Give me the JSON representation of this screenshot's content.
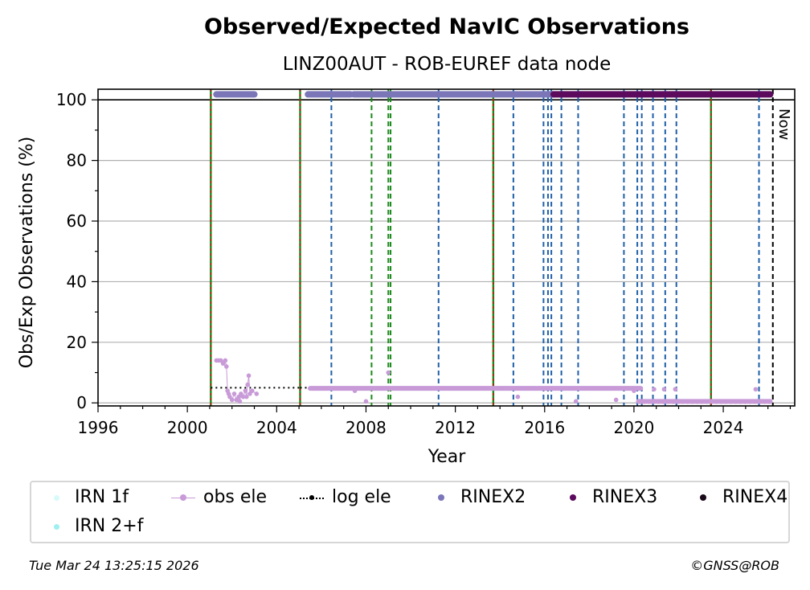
{
  "chart_data": {
    "type": "scatter",
    "title": "Observed/Expected NavIC Observations",
    "subtitle": "LINZ00AUT - ROB-EUREF data node",
    "xlabel": "Year",
    "ylabel": "Obs/Exp Observations (%)",
    "xlim": [
      1996,
      2027.2
    ],
    "ylim": [
      -1,
      103.5
    ],
    "xticks": [
      1996,
      2000,
      2004,
      2008,
      2012,
      2016,
      2020,
      2024
    ],
    "yticks": [
      0,
      20,
      40,
      60,
      80,
      100
    ],
    "grid": "horizontal",
    "now_label": "Now",
    "now_year": 2026.22,
    "reference_line_y": 100,
    "vlines_green_red": [
      2001.05,
      2005.05,
      2013.7,
      2023.45
    ],
    "vlines_green": [
      2008.25,
      2009.0,
      2009.1
    ],
    "vlines_blue": [
      2006.45,
      2011.25,
      2014.6,
      2015.95,
      2016.15,
      2016.3,
      2016.75,
      2017.5,
      2019.55,
      2020.15,
      2020.35,
      2020.85,
      2021.4,
      2021.9,
      2025.6
    ],
    "series": [
      {
        "name": "obs ele",
        "color": "#c89ad8",
        "points": [
          [
            2001.3,
            14
          ],
          [
            2001.4,
            14
          ],
          [
            2001.5,
            14
          ],
          [
            2001.6,
            13
          ],
          [
            2001.7,
            14
          ],
          [
            2001.75,
            12
          ],
          [
            2001.8,
            4
          ],
          [
            2001.85,
            3
          ],
          [
            2001.9,
            2
          ],
          [
            2002.0,
            1
          ],
          [
            2002.1,
            3
          ],
          [
            2002.2,
            1
          ],
          [
            2002.3,
            2
          ],
          [
            2002.35,
            0.5
          ],
          [
            2002.4,
            3
          ],
          [
            2002.5,
            2
          ],
          [
            2002.6,
            4
          ],
          [
            2002.65,
            2
          ],
          [
            2002.7,
            6
          ],
          [
            2002.75,
            9
          ],
          [
            2002.8,
            3
          ],
          [
            2002.9,
            4
          ],
          [
            2003.1,
            3
          ],
          [
            2007.5,
            4
          ],
          [
            2008.0,
            0.5
          ],
          [
            2009.0,
            10
          ],
          [
            2014.8,
            2
          ],
          [
            2017.4,
            0.5
          ],
          [
            2019.2,
            1
          ],
          [
            2020.0,
            4
          ],
          [
            2020.9,
            4.5
          ],
          [
            2021.35,
            4.5
          ],
          [
            2021.85,
            4.5
          ],
          [
            2025.45,
            4.5
          ]
        ],
        "bands": [
          {
            "from": 2005.5,
            "to": 2020.3,
            "y": 4.8
          },
          {
            "from": 2020.2,
            "to": 2026.1,
            "y": 0.5
          }
        ]
      },
      {
        "name": "log ele",
        "color": "#000000",
        "segments": [
          {
            "from": 2001.05,
            "to": 2005.05,
            "y": 5
          },
          {
            "from": 2005.05,
            "to": 2020.3,
            "y": 5
          },
          {
            "from": 2020.2,
            "to": 2026.2,
            "y": 0
          }
        ]
      },
      {
        "name": "RINEX2",
        "color": "#7b76b8",
        "segments": [
          {
            "from": 2001.3,
            "to": 2003.0,
            "y": 101.8
          },
          {
            "from": 2005.4,
            "to": 2007.3,
            "y": 101.8
          },
          {
            "from": 2007.45,
            "to": 2016.4,
            "y": 101.8
          }
        ]
      },
      {
        "name": "RINEX3",
        "color": "#5c0a5e",
        "segments": [
          {
            "from": 2016.4,
            "to": 2026.1,
            "y": 101.8
          }
        ]
      },
      {
        "name": "RINEX4",
        "color": "#1a0a1a",
        "segments": []
      },
      {
        "name": "IRN 1f",
        "color": "#d8fafa",
        "segments": []
      },
      {
        "name": "IRN 2+f",
        "color": "#9ef0f0",
        "segments": []
      }
    ]
  },
  "legend": {
    "irn1f": "IRN 1f",
    "irn2f": "IRN 2+f",
    "obs_ele": "obs ele",
    "log_ele": "log ele",
    "rinex2": "RINEX2",
    "rinex3": "RINEX3",
    "rinex4": "RINEX4"
  },
  "footer": {
    "timestamp": "Tue Mar 24 13:25:15 2026",
    "credit": "©GNSS@ROB"
  }
}
